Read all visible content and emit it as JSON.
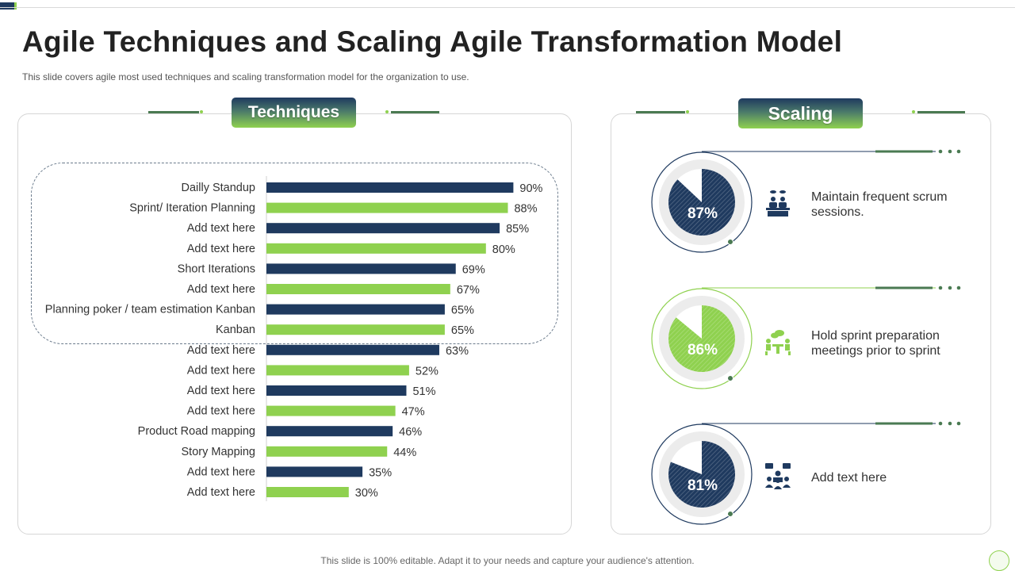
{
  "title": "Agile Techniques and Scaling Agile Transformation Model",
  "subtitle": "This slide covers agile most used techniques and scaling transformation  model for the organization to use.",
  "techniques_label": "Techniques",
  "scaling_label": "Scaling",
  "footer": "This slide is 100% editable. Adapt it to your needs and capture your audience's attention.",
  "colors": {
    "navy": "#1f3a5f",
    "green": "#8fd14f"
  },
  "chart_data": {
    "type": "bar",
    "orientation": "horizontal",
    "categories": [
      "Dailly Standup",
      "Sprint/ Iteration Planning",
      "Add text here",
      "Add text here",
      "Short Iterations",
      "Add text here",
      "Planning poker / team estimation Kanban",
      "Kanban",
      "Add text here",
      "Add text here",
      "Add text here",
      "Add text here",
      "Product Road mapping",
      "Story Mapping",
      "Add text here",
      "Add text here"
    ],
    "values": [
      90,
      88,
      85,
      80,
      69,
      67,
      65,
      65,
      63,
      52,
      51,
      47,
      46,
      44,
      35,
      30
    ],
    "value_labels": [
      "90%",
      "88%",
      "85%",
      "80%",
      "69%",
      "67%",
      "65%",
      "65%",
      "63%",
      "52%",
      "51%",
      "47%",
      "46%",
      "44%",
      "35%",
      "30%"
    ],
    "bar_colors": [
      "#1f3a5f",
      "#8fd14f"
    ],
    "xlim": [
      0,
      100
    ],
    "grid": false,
    "legend": "none"
  },
  "scaling": [
    {
      "percent": 87,
      "label": "87%",
      "text": "Maintain frequent scrum sessions.",
      "color": "#1f3a5f",
      "icon": "meeting-table-icon"
    },
    {
      "percent": 86,
      "label": "86%",
      "text": "Hold sprint preparation meetings prior to sprint",
      "color": "#8fd14f",
      "icon": "discussion-table-icon"
    },
    {
      "percent": 81,
      "label": "81%",
      "text": "Add text here",
      "color": "#1f3a5f",
      "icon": "team-chat-icon"
    }
  ]
}
